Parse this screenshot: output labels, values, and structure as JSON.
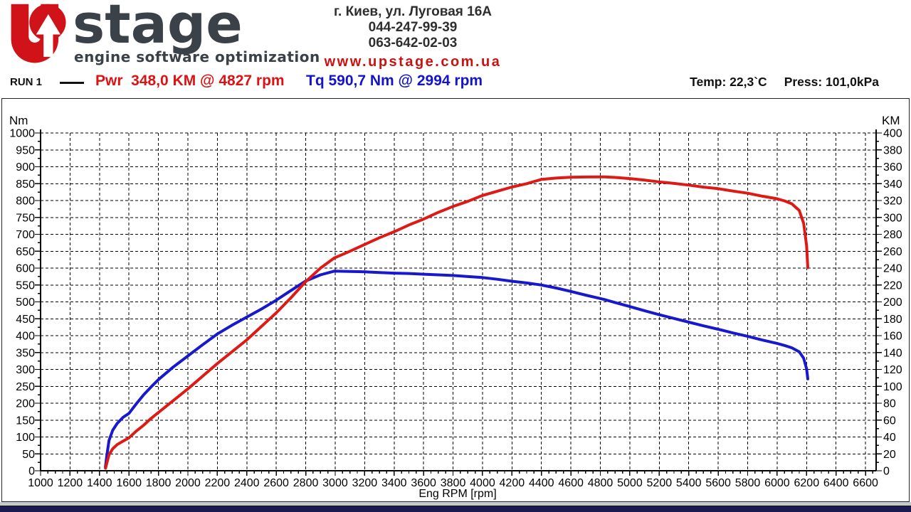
{
  "header": {
    "logo": {
      "brand": "stage",
      "tagline": "engine software optimization",
      "red": "#cf1319",
      "dark": "#3a4149"
    },
    "contact": {
      "address": "г. Киев, ул. Луговая 16А",
      "phone1": "044-247-99-39",
      "phone2": "063-642-02-03",
      "website": "www.upstage.com.ua"
    }
  },
  "legend": {
    "run_label": "RUN 1",
    "power_label": "Pwr  348,0 KM @ 4827 rpm",
    "torque_label": "Tq 590,7 Nm @ 2994 rpm",
    "temp": "Temp: 22,3`C",
    "press": "Press: 101,0kPa"
  },
  "chart_data": {
    "type": "line",
    "xlabel": "Eng RPM [rpm]",
    "x_axis": {
      "min": 1000,
      "max": 6672,
      "label_step": 200,
      "label_max": 6600,
      "minor_step": 50
    },
    "left_axis": {
      "label": "Nm",
      "min": 0,
      "max": 1000,
      "step": 50,
      "minor_step": 25
    },
    "right_axis": {
      "label": "KM",
      "min": 0,
      "max": 400,
      "step": 20,
      "minor_step": 10
    },
    "grid": "dashed",
    "peaks": {
      "power": {
        "value_km": 348.0,
        "rpm": 4827
      },
      "torque": {
        "value_nm": 590.7,
        "rpm": 2994
      }
    },
    "series": [
      {
        "name": "Torque",
        "units": "Nm",
        "axis": "left",
        "color": "#1818cd",
        "points": [
          [
            1440,
            10
          ],
          [
            1450,
            45
          ],
          [
            1465,
            90
          ],
          [
            1490,
            120
          ],
          [
            1520,
            140
          ],
          [
            1560,
            158
          ],
          [
            1600,
            170
          ],
          [
            1650,
            198
          ],
          [
            1700,
            225
          ],
          [
            1750,
            248
          ],
          [
            1800,
            270
          ],
          [
            1900,
            307
          ],
          [
            2000,
            340
          ],
          [
            2100,
            373
          ],
          [
            2200,
            405
          ],
          [
            2300,
            431
          ],
          [
            2400,
            455
          ],
          [
            2500,
            479
          ],
          [
            2600,
            505
          ],
          [
            2700,
            534
          ],
          [
            2800,
            562
          ],
          [
            2900,
            580
          ],
          [
            2994,
            591
          ],
          [
            3100,
            590
          ],
          [
            3200,
            589
          ],
          [
            3300,
            587
          ],
          [
            3400,
            585
          ],
          [
            3500,
            584
          ],
          [
            3600,
            582
          ],
          [
            3700,
            580
          ],
          [
            3800,
            578
          ],
          [
            3900,
            575
          ],
          [
            4000,
            572
          ],
          [
            4100,
            567
          ],
          [
            4200,
            561
          ],
          [
            4300,
            556
          ],
          [
            4400,
            550
          ],
          [
            4500,
            541
          ],
          [
            4600,
            531
          ],
          [
            4700,
            520
          ],
          [
            4800,
            510
          ],
          [
            4827,
            507
          ],
          [
            4900,
            498
          ],
          [
            5000,
            486
          ],
          [
            5100,
            474
          ],
          [
            5200,
            462
          ],
          [
            5300,
            451
          ],
          [
            5400,
            440
          ],
          [
            5500,
            429
          ],
          [
            5600,
            419
          ],
          [
            5700,
            408
          ],
          [
            5800,
            398
          ],
          [
            5900,
            387
          ],
          [
            6000,
            377
          ],
          [
            6050,
            371
          ],
          [
            6100,
            364
          ],
          [
            6150,
            352
          ],
          [
            6180,
            333
          ],
          [
            6200,
            302
          ],
          [
            6208,
            272
          ]
        ]
      },
      {
        "name": "Power",
        "units": "KM",
        "axis": "right",
        "color": "#dd1a16",
        "points": [
          [
            1441,
            3
          ],
          [
            1450,
            9
          ],
          [
            1465,
            19
          ],
          [
            1490,
            26
          ],
          [
            1520,
            31
          ],
          [
            1560,
            35
          ],
          [
            1600,
            39
          ],
          [
            1650,
            47
          ],
          [
            1700,
            54
          ],
          [
            1750,
            62
          ],
          [
            1800,
            69
          ],
          [
            1900,
            83
          ],
          [
            2000,
            97
          ],
          [
            2100,
            112
          ],
          [
            2200,
            127
          ],
          [
            2300,
            141
          ],
          [
            2400,
            155
          ],
          [
            2500,
            171
          ],
          [
            2600,
            187
          ],
          [
            2700,
            205
          ],
          [
            2800,
            224
          ],
          [
            2900,
            240
          ],
          [
            2994,
            252
          ],
          [
            3100,
            260
          ],
          [
            3200,
            268
          ],
          [
            3300,
            276
          ],
          [
            3400,
            283
          ],
          [
            3500,
            291
          ],
          [
            3600,
            298
          ],
          [
            3700,
            306
          ],
          [
            3800,
            313
          ],
          [
            3900,
            319
          ],
          [
            4000,
            326
          ],
          [
            4100,
            331
          ],
          [
            4200,
            336
          ],
          [
            4300,
            340
          ],
          [
            4400,
            345
          ],
          [
            4500,
            346.6
          ],
          [
            4600,
            347.5
          ],
          [
            4700,
            347.9
          ],
          [
            4800,
            348
          ],
          [
            4827,
            348
          ],
          [
            4900,
            347.4
          ],
          [
            5000,
            346
          ],
          [
            5100,
            344.2
          ],
          [
            5200,
            342.1
          ],
          [
            5300,
            340.3
          ],
          [
            5400,
            338.3
          ],
          [
            5500,
            335.9
          ],
          [
            5600,
            334.1
          ],
          [
            5700,
            331.2
          ],
          [
            5800,
            328.7
          ],
          [
            5900,
            325.1
          ],
          [
            6000,
            322.1
          ],
          [
            6050,
            319.6
          ],
          [
            6100,
            316.1
          ],
          [
            6150,
            308.2
          ],
          [
            6180,
            293
          ],
          [
            6200,
            266.6
          ],
          [
            6208,
            240.5
          ]
        ]
      }
    ]
  }
}
